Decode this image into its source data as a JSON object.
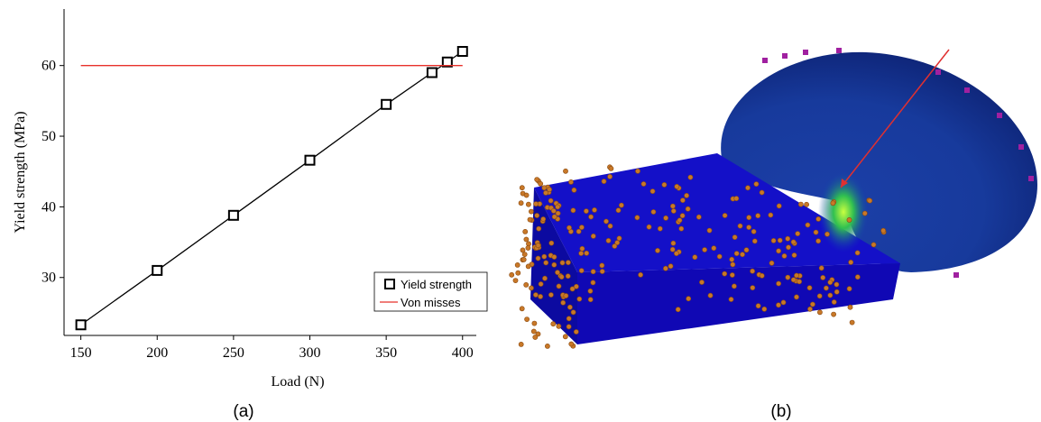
{
  "chart_data": {
    "type": "line",
    "x_label": "Load (N)",
    "y_label": "Yield strength (MPa)",
    "x": [
      150,
      200,
      250,
      300,
      350,
      380,
      390,
      400
    ],
    "series": [
      {
        "name": "Yield strength",
        "color": "#000000",
        "marker": "square",
        "values": [
          23.3,
          31.0,
          38.8,
          46.6,
          54.5,
          59.0,
          60.5,
          62.0
        ]
      },
      {
        "name": "Von misses",
        "color": "#e8302a",
        "marker": "none",
        "x": [
          150,
          400
        ],
        "values": [
          60,
          60
        ]
      }
    ],
    "xlim": [
      139,
      409
    ],
    "ylim": [
      21.8,
      68
    ],
    "xticks": [
      150,
      200,
      250,
      300,
      350,
      400
    ],
    "yticks": [
      30,
      40,
      50,
      60
    ],
    "legend": "lower right"
  },
  "captions": [
    "(a)",
    "(b)"
  ]
}
